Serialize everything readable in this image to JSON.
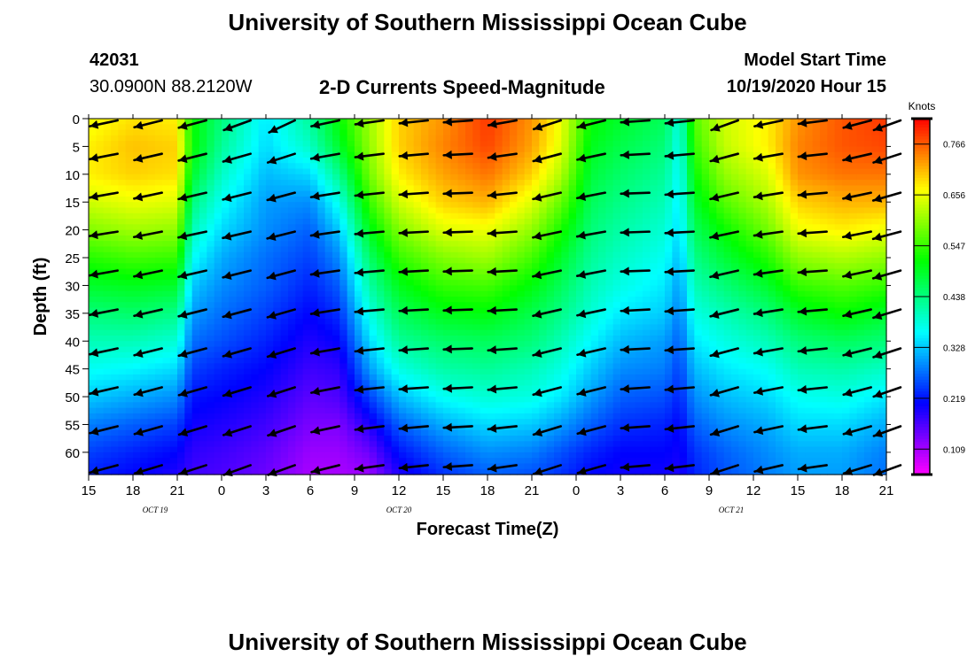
{
  "header": {
    "title_top": "University of Southern Mississippi Ocean Cube",
    "station_id": "42031",
    "station_coords": "30.0900N 88.2120W",
    "plot_title": "2-D Currents Speed-Magnitude",
    "model_start_label": "Model Start Time",
    "model_start_value": "10/19/2020 Hour 15",
    "title_bottom": "University of Southern Mississippi Ocean Cube"
  },
  "chart_data": {
    "type": "heatmap",
    "title": "2-D Currents Speed-Magnitude",
    "xlabel": "Forecast Time(Z)",
    "ylabel": "Depth (ft)",
    "colorbar_label": "Knots",
    "x_tick_labels": [
      "15",
      "18",
      "21",
      "0",
      "3",
      "6",
      "9",
      "12",
      "15",
      "18",
      "21",
      "0",
      "3",
      "6",
      "9",
      "12",
      "15",
      "18",
      "21"
    ],
    "date_labels": [
      {
        "text": "OCT 19",
        "tick_index": 1.5
      },
      {
        "text": "OCT 20",
        "tick_index": 7
      },
      {
        "text": "OCT 21",
        "tick_index": 14.5
      }
    ],
    "y_ticks": [
      0,
      5,
      10,
      15,
      20,
      25,
      30,
      35,
      40,
      45,
      50,
      55,
      60
    ],
    "ylim": [
      0,
      64
    ],
    "y_inverted": true,
    "colorbar_ticks": [
      "0.109",
      "0.219",
      "0.328",
      "0.438",
      "0.547",
      "0.656",
      "0.766"
    ],
    "colorbar_range": [
      0.055,
      0.875
    ],
    "depths": [
      0,
      5,
      10,
      15,
      20,
      25,
      30,
      35,
      40,
      45,
      50,
      55,
      60,
      64
    ],
    "speed_columns": [
      {
        "h": 0,
        "v": [
          0.7,
          0.72,
          0.72,
          0.68,
          0.63,
          0.57,
          0.52,
          0.47,
          0.43,
          0.39,
          0.35,
          0.3,
          0.26,
          0.24
        ]
      },
      {
        "h": 3,
        "v": [
          0.73,
          0.75,
          0.74,
          0.7,
          0.65,
          0.59,
          0.53,
          0.48,
          0.43,
          0.38,
          0.33,
          0.28,
          0.24,
          0.22
        ]
      },
      {
        "h": 6,
        "v": [
          0.72,
          0.74,
          0.73,
          0.69,
          0.64,
          0.58,
          0.52,
          0.46,
          0.41,
          0.36,
          0.31,
          0.26,
          0.22,
          0.2
        ]
      },
      {
        "h": 7,
        "v": [
          0.55,
          0.55,
          0.52,
          0.47,
          0.43,
          0.39,
          0.35,
          0.32,
          0.29,
          0.26,
          0.23,
          0.21,
          0.19,
          0.18
        ]
      },
      {
        "h": 9,
        "v": [
          0.47,
          0.45,
          0.42,
          0.39,
          0.36,
          0.33,
          0.31,
          0.29,
          0.27,
          0.24,
          0.22,
          0.2,
          0.18,
          0.17
        ]
      },
      {
        "h": 12,
        "v": [
          0.37,
          0.36,
          0.34,
          0.32,
          0.31,
          0.29,
          0.28,
          0.26,
          0.24,
          0.22,
          0.2,
          0.18,
          0.16,
          0.15
        ]
      },
      {
        "h": 15,
        "v": [
          0.45,
          0.42,
          0.36,
          0.31,
          0.28,
          0.26,
          0.24,
          0.22,
          0.2,
          0.18,
          0.16,
          0.14,
          0.12,
          0.11
        ]
      },
      {
        "h": 17,
        "v": [
          0.55,
          0.52,
          0.46,
          0.4,
          0.35,
          0.31,
          0.28,
          0.25,
          0.22,
          0.19,
          0.17,
          0.14,
          0.12,
          0.11
        ]
      },
      {
        "h": 19,
        "v": [
          0.65,
          0.64,
          0.62,
          0.58,
          0.53,
          0.48,
          0.44,
          0.4,
          0.36,
          0.32,
          0.26,
          0.2,
          0.15,
          0.12
        ]
      },
      {
        "h": 21,
        "v": [
          0.74,
          0.74,
          0.72,
          0.68,
          0.63,
          0.58,
          0.53,
          0.49,
          0.45,
          0.4,
          0.34,
          0.28,
          0.23,
          0.2
        ]
      },
      {
        "h": 24,
        "v": [
          0.78,
          0.79,
          0.77,
          0.74,
          0.69,
          0.63,
          0.58,
          0.53,
          0.48,
          0.44,
          0.39,
          0.33,
          0.28,
          0.25
        ]
      },
      {
        "h": 27,
        "v": [
          0.84,
          0.83,
          0.8,
          0.76,
          0.7,
          0.65,
          0.59,
          0.54,
          0.49,
          0.45,
          0.41,
          0.36,
          0.31,
          0.28
        ]
      },
      {
        "h": 30,
        "v": [
          0.78,
          0.77,
          0.74,
          0.69,
          0.64,
          0.59,
          0.54,
          0.5,
          0.47,
          0.43,
          0.4,
          0.35,
          0.3,
          0.27
        ]
      },
      {
        "h": 32,
        "v": [
          0.7,
          0.69,
          0.66,
          0.61,
          0.56,
          0.52,
          0.49,
          0.46,
          0.43,
          0.4,
          0.37,
          0.32,
          0.27,
          0.25
        ]
      },
      {
        "h": 34,
        "v": [
          0.55,
          0.53,
          0.51,
          0.49,
          0.47,
          0.45,
          0.43,
          0.41,
          0.38,
          0.35,
          0.32,
          0.28,
          0.24,
          0.22
        ]
      },
      {
        "h": 36,
        "v": [
          0.52,
          0.5,
          0.48,
          0.46,
          0.44,
          0.42,
          0.4,
          0.37,
          0.34,
          0.31,
          0.28,
          0.25,
          0.22,
          0.21
        ]
      },
      {
        "h": 39,
        "v": [
          0.49,
          0.47,
          0.45,
          0.43,
          0.41,
          0.39,
          0.37,
          0.35,
          0.32,
          0.3,
          0.27,
          0.24,
          0.22,
          0.21
        ]
      },
      {
        "h": 40,
        "v": [
          0.4,
          0.39,
          0.38,
          0.37,
          0.36,
          0.34,
          0.32,
          0.3,
          0.28,
          0.26,
          0.24,
          0.22,
          0.21,
          0.2
        ]
      },
      {
        "h": 41,
        "v": [
          0.6,
          0.58,
          0.55,
          0.52,
          0.49,
          0.46,
          0.43,
          0.4,
          0.37,
          0.34,
          0.31,
          0.28,
          0.25,
          0.24
        ]
      },
      {
        "h": 43,
        "v": [
          0.68,
          0.67,
          0.64,
          0.6,
          0.55,
          0.51,
          0.47,
          0.43,
          0.4,
          0.37,
          0.34,
          0.31,
          0.28,
          0.27
        ]
      },
      {
        "h": 46,
        "v": [
          0.72,
          0.72,
          0.69,
          0.66,
          0.62,
          0.57,
          0.52,
          0.47,
          0.43,
          0.39,
          0.36,
          0.33,
          0.31,
          0.3
        ]
      },
      {
        "h": 48,
        "v": [
          0.78,
          0.79,
          0.78,
          0.74,
          0.7,
          0.64,
          0.58,
          0.52,
          0.47,
          0.43,
          0.39,
          0.36,
          0.33,
          0.32
        ]
      },
      {
        "h": 51,
        "v": [
          0.82,
          0.82,
          0.8,
          0.76,
          0.72,
          0.66,
          0.6,
          0.55,
          0.49,
          0.44,
          0.4,
          0.36,
          0.33,
          0.32
        ]
      },
      {
        "h": 54,
        "v": [
          0.84,
          0.83,
          0.8,
          0.76,
          0.7,
          0.64,
          0.58,
          0.52,
          0.47,
          0.42,
          0.37,
          0.33,
          0.3,
          0.29
        ]
      }
    ],
    "arrows": {
      "times": [
        1,
        4,
        7,
        10,
        13,
        16,
        19,
        22,
        25,
        28,
        31,
        34,
        37,
        40,
        43,
        46,
        49,
        52,
        54
      ],
      "depths": [
        0,
        6,
        13,
        20,
        27,
        34,
        41,
        48,
        55,
        62
      ],
      "direction_deg": [
        [
          -168,
          -169,
          -170,
          -171,
          -170,
          -169,
          -168,
          -167,
          -166,
          -165
        ],
        [
          -166,
          -167,
          -168,
          -169,
          -168,
          -167,
          -166,
          -165,
          -164,
          -163
        ],
        [
          -165,
          -166,
          -167,
          -168,
          -167,
          -166,
          -165,
          -164,
          -163,
          -162
        ],
        [
          -160,
          -164,
          -166,
          -167,
          -166,
          -165,
          -164,
          -163,
          -162,
          -160
        ],
        [
          -155,
          -162,
          -165,
          -166,
          -165,
          -164,
          -163,
          -162,
          -161,
          -160
        ],
        [
          -168,
          -170,
          -171,
          -172,
          -172,
          -171,
          -170,
          -169,
          -168,
          -166
        ],
        [
          -172,
          -173,
          -174,
          -175,
          -175,
          -175,
          -174,
          -174,
          -173,
          -172
        ],
        [
          -174,
          -175,
          -176,
          -177,
          -177,
          -177,
          -176,
          -176,
          -175,
          -174
        ],
        [
          -176,
          -177,
          -178,
          -178,
          -178,
          -178,
          -178,
          -177,
          -177,
          -176
        ],
        [
          -170,
          -172,
          -174,
          -176,
          -177,
          -177,
          -176,
          -175,
          -174,
          -172
        ],
        [
          -162,
          -165,
          -167,
          -168,
          -168,
          -167,
          -166,
          -165,
          -163,
          -162
        ],
        [
          -166,
          -168,
          -169,
          -170,
          -169,
          -168,
          -167,
          -166,
          -165,
          -164
        ],
        [
          -176,
          -177,
          -178,
          -178,
          -178,
          -177,
          -177,
          -176,
          -176,
          -175
        ],
        [
          -174,
          -175,
          -176,
          -177,
          -177,
          -176,
          -176,
          -175,
          -174,
          -173
        ],
        [
          -160,
          -165,
          -167,
          -168,
          -167,
          -166,
          -165,
          -164,
          -163,
          -162
        ],
        [
          -168,
          -170,
          -171,
          -172,
          -172,
          -171,
          -170,
          -169,
          -168,
          -167
        ],
        [
          -173,
          -174,
          -175,
          -176,
          -176,
          -175,
          -174,
          -174,
          -173,
          -172
        ],
        [
          -165,
          -167,
          -168,
          -169,
          -168,
          -167,
          -166,
          -165,
          -164,
          -163
        ],
        [
          -160,
          -162,
          -164,
          -165,
          -164,
          -163,
          -162,
          -161,
          -160,
          -160
        ]
      ]
    }
  }
}
